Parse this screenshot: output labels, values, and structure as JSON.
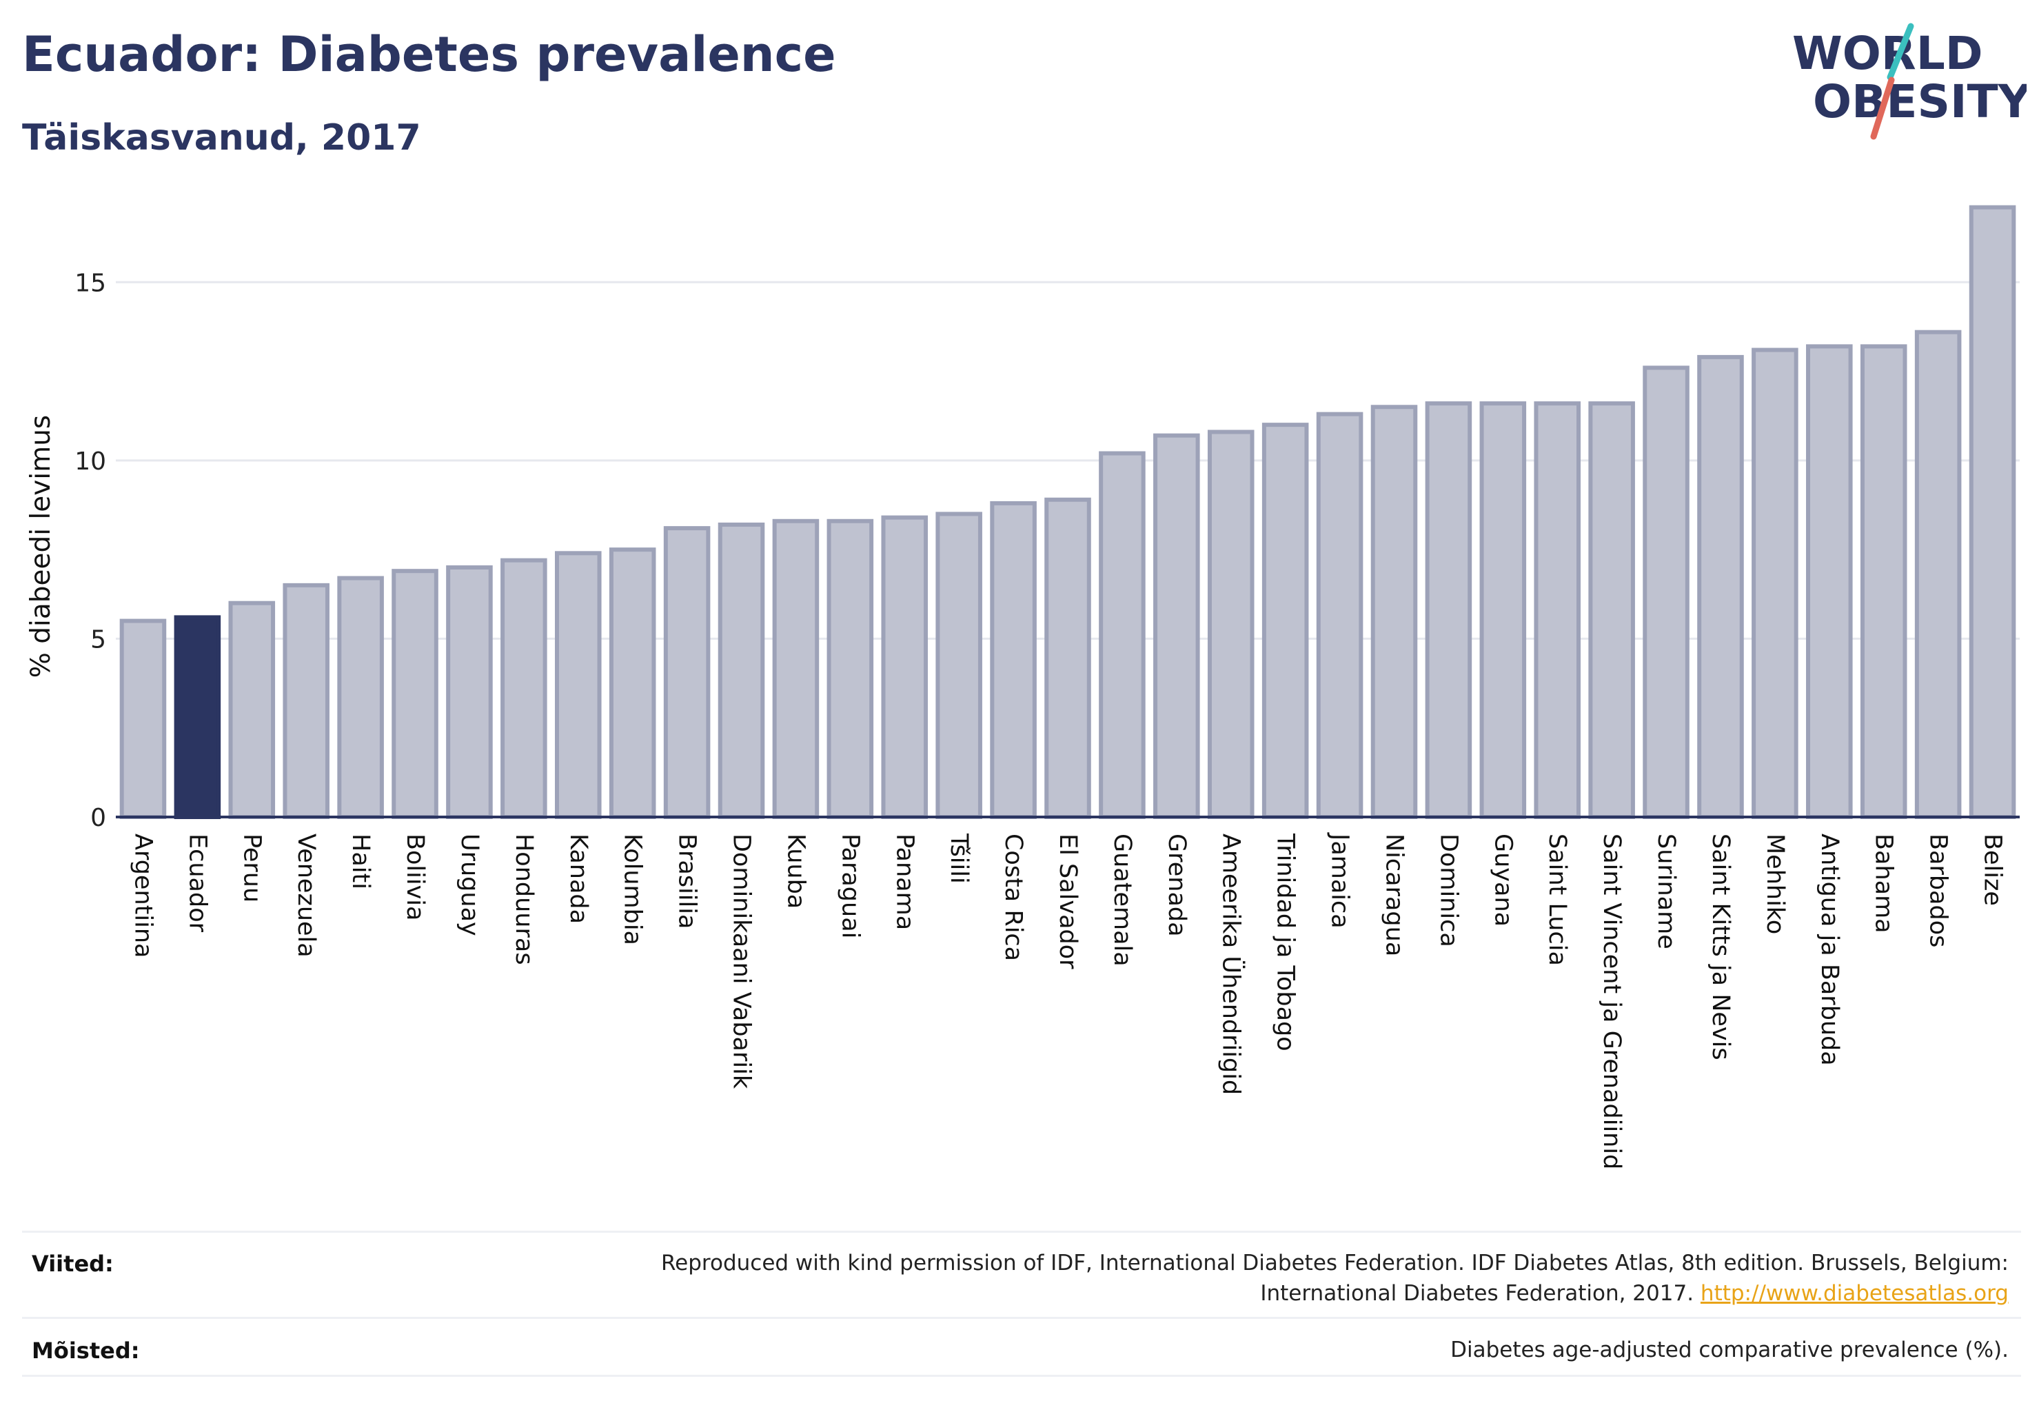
{
  "header": {
    "title": "Ecuador: Diabetes prevalence",
    "subtitle": "Täiskasvanud, 2017"
  },
  "logo": {
    "line1": "WORLD",
    "line2": "OBESITY",
    "colors": {
      "text": "#2b3561",
      "slash_top": "#3bbfbf",
      "slash_bottom": "#e0685a"
    }
  },
  "chart_data": {
    "type": "bar",
    "title": "Ecuador: Diabetes prevalence",
    "subtitle": "Täiskasvanud, 2017",
    "ylabel": "% diabeedi levimus",
    "xlabel": "",
    "ylim": [
      0,
      17.5
    ],
    "yticks": [
      0,
      5,
      10,
      15
    ],
    "grid": true,
    "highlight": "Ecuador",
    "colors": {
      "bar": "#bfc2d0",
      "bar_border": "#9da2b8",
      "highlight": "#2b3561",
      "grid": "#e6e8ee",
      "axis": "#2b3561"
    },
    "categories": [
      "Argentiina",
      "Ecuador",
      "Peruu",
      "Venezuela",
      "Haiti",
      "Boliivia",
      "Uruguay",
      "Honduuras",
      "Kanada",
      "Kolumbia",
      "Brasiilia",
      "Dominikaani Vabariik",
      "Kuuba",
      "Paraguai",
      "Panama",
      "Tšiili",
      "Costa Rica",
      "El Salvador",
      "Guatemala",
      "Grenada",
      "Ameerika Ühendriigid",
      "Trinidad ja Tobago",
      "Jamaica",
      "Nicaragua",
      "Dominica",
      "Guyana",
      "Saint Lucia",
      "Saint Vincent ja Grenadiinid",
      "Suriname",
      "Saint Kitts ja Nevis",
      "Mehhiko",
      "Antigua ja Barbuda",
      "Bahama",
      "Barbados",
      "Belize"
    ],
    "values": [
      5.5,
      5.6,
      6.0,
      6.5,
      6.7,
      6.9,
      7.0,
      7.2,
      7.4,
      7.5,
      8.1,
      8.2,
      8.3,
      8.3,
      8.4,
      8.5,
      8.8,
      8.9,
      10.2,
      10.7,
      10.8,
      11.0,
      11.3,
      11.5,
      11.6,
      11.6,
      11.6,
      11.6,
      12.6,
      12.9,
      13.1,
      13.2,
      13.2,
      13.6,
      17.1
    ]
  },
  "footer": {
    "references_label": "Viited:",
    "references_text_1": "Reproduced with kind permission of IDF, International Diabetes Federation. IDF Diabetes Atlas, 8th edition. Brussels, Belgium:",
    "references_text_2": "International Diabetes Federation, 2017.",
    "references_link": "http://www.diabetesatlas.org",
    "definitions_label": "Mõisted:",
    "definitions_text": "Diabetes age-adjusted comparative prevalence (%)."
  }
}
